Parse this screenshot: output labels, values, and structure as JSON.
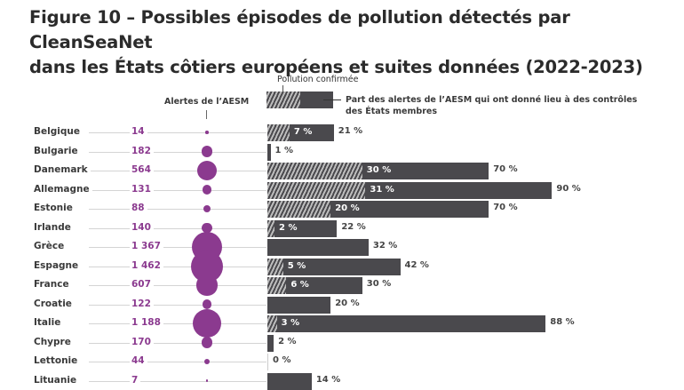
{
  "title_line1": "Figure 10 – Possibles épisodes de pollution détectés par CleanSeaNet",
  "title_line2": "dans les États côtiers européens et suites données (2022-2023)",
  "chart_data": {
    "type": "bar",
    "legend": {
      "alerts_label": "Alertes de l’AESM",
      "confirmed_label": "Pollution confirmée",
      "controls_label_1": "Part des alertes de l’AESM qui ont donné lieu à des contrôles",
      "controls_label_2": "des États membres"
    },
    "colors": {
      "bubble": "#8b3a8f",
      "bar": "#4a494d",
      "alert_text": "#8b3a8f"
    },
    "rows": [
      {
        "country": "Belgique",
        "alerts": 14,
        "alerts_label": "14",
        "controls": 21,
        "confirmed": 7
      },
      {
        "country": "Bulgarie",
        "alerts": 182,
        "alerts_label": "182",
        "controls": 1,
        "confirmed": null
      },
      {
        "country": "Danemark",
        "alerts": 564,
        "alerts_label": "564",
        "controls": 70,
        "confirmed": 30
      },
      {
        "country": "Allemagne",
        "alerts": 131,
        "alerts_label": "131",
        "controls": 90,
        "confirmed": 31
      },
      {
        "country": "Estonie",
        "alerts": 88,
        "alerts_label": "88",
        "controls": 70,
        "confirmed": 20
      },
      {
        "country": "Irlande",
        "alerts": 140,
        "alerts_label": "140",
        "controls": 22,
        "confirmed": 2
      },
      {
        "country": "Grèce",
        "alerts": 1367,
        "alerts_label": "1 367",
        "controls": 32,
        "confirmed": null
      },
      {
        "country": "Espagne",
        "alerts": 1462,
        "alerts_label": "1 462",
        "controls": 42,
        "confirmed": 5
      },
      {
        "country": "France",
        "alerts": 607,
        "alerts_label": "607",
        "controls": 30,
        "confirmed": 6
      },
      {
        "country": "Croatie",
        "alerts": 122,
        "alerts_label": "122",
        "controls": 20,
        "confirmed": null
      },
      {
        "country": "Italie",
        "alerts": 1188,
        "alerts_label": "1 188",
        "controls": 88,
        "confirmed": 3
      },
      {
        "country": "Chypre",
        "alerts": 170,
        "alerts_label": "170",
        "controls": 2,
        "confirmed": null
      },
      {
        "country": "Lettonie",
        "alerts": 44,
        "alerts_label": "44",
        "controls": 0,
        "confirmed": null
      },
      {
        "country": "Lituanie",
        "alerts": 7,
        "alerts_label": "7",
        "controls": 14,
        "confirmed": null
      }
    ]
  }
}
